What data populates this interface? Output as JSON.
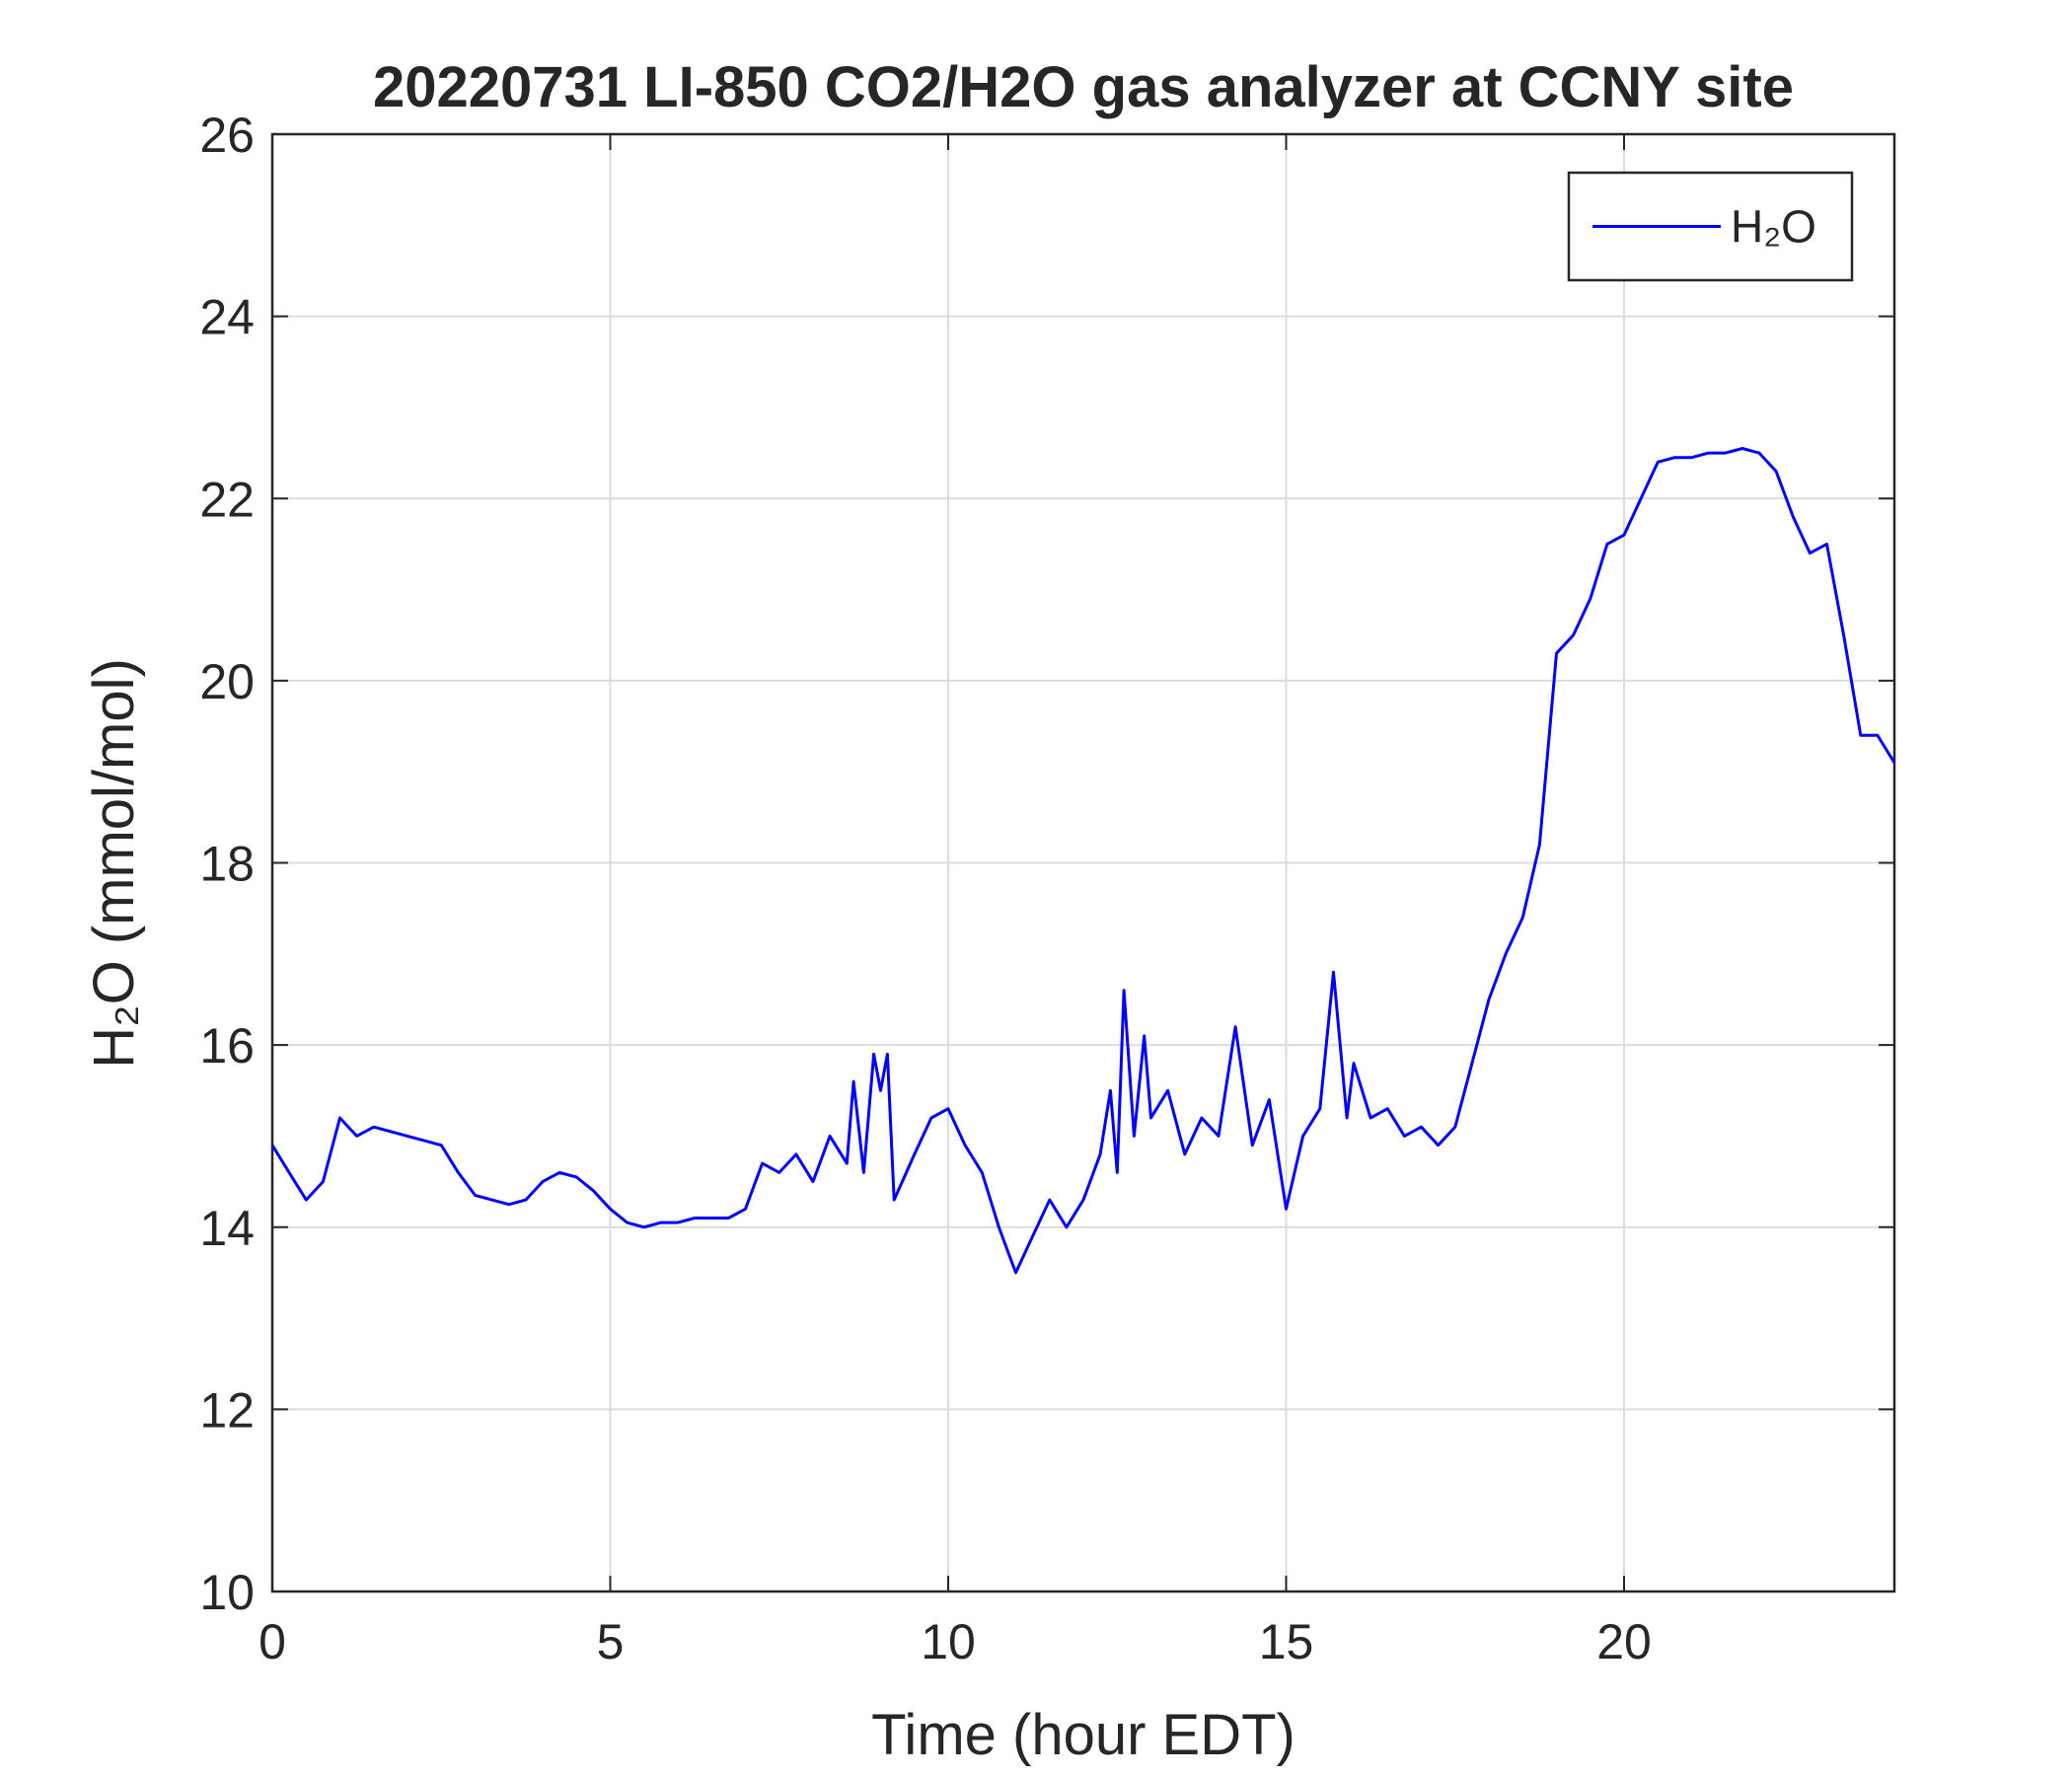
{
  "chart_data": {
    "type": "line",
    "title": "20220731 LI-850 CO2/H2O gas analyzer at CCNY site",
    "x_label": "Time (hour EDT)",
    "y_label": "H₂O (mmol/mol)",
    "x": [
      0,
      0.25,
      0.5,
      0.75,
      1.0,
      1.25,
      1.5,
      1.75,
      2.0,
      2.25,
      2.5,
      2.75,
      3.0,
      3.25,
      3.5,
      3.75,
      4.0,
      4.25,
      4.5,
      4.75,
      5.0,
      5.25,
      5.5,
      5.75,
      6.0,
      6.25,
      6.5,
      6.75,
      7.0,
      7.25,
      7.5,
      7.75,
      8.0,
      8.25,
      8.5,
      8.6,
      8.75,
      8.9,
      9.0,
      9.1,
      9.2,
      9.5,
      9.75,
      10.0,
      10.25,
      10.5,
      10.75,
      11.0,
      11.25,
      11.5,
      11.75,
      12.0,
      12.25,
      12.4,
      12.5,
      12.6,
      12.75,
      12.9,
      13.0,
      13.25,
      13.5,
      13.75,
      14.0,
      14.25,
      14.5,
      14.75,
      15.0,
      15.25,
      15.5,
      15.7,
      15.9,
      16.0,
      16.25,
      16.5,
      16.75,
      17.0,
      17.25,
      17.5,
      17.75,
      18.0,
      18.25,
      18.5,
      18.75,
      19.0,
      19.25,
      19.5,
      19.75,
      20.0,
      20.25,
      20.5,
      20.75,
      21.0,
      21.25,
      21.5,
      21.75,
      22.0,
      22.25,
      22.5,
      22.75,
      23.0,
      23.25,
      23.5,
      23.75,
      24.0
    ],
    "series": [
      {
        "name": "H₂O",
        "color": "#0000ff",
        "values": [
          14.9,
          14.6,
          14.3,
          14.5,
          15.2,
          15.0,
          15.1,
          15.05,
          15.0,
          14.95,
          14.9,
          14.6,
          14.35,
          14.3,
          14.25,
          14.3,
          14.5,
          14.6,
          14.55,
          14.4,
          14.2,
          14.05,
          14.0,
          14.05,
          14.05,
          14.1,
          14.1,
          14.1,
          14.2,
          14.7,
          14.6,
          14.8,
          14.5,
          15.0,
          14.7,
          15.6,
          14.6,
          15.9,
          15.5,
          15.9,
          14.3,
          14.8,
          15.2,
          15.3,
          14.9,
          14.6,
          14.0,
          13.5,
          13.9,
          14.3,
          14.0,
          14.3,
          14.8,
          15.5,
          14.6,
          16.6,
          15.0,
          16.1,
          15.2,
          15.5,
          14.8,
          15.2,
          15.0,
          16.2,
          14.9,
          15.4,
          14.2,
          15.0,
          15.3,
          16.8,
          15.2,
          15.8,
          15.2,
          15.3,
          15.0,
          15.1,
          14.9,
          15.1,
          15.8,
          16.5,
          17.0,
          17.4,
          18.2,
          20.3,
          20.5,
          20.9,
          21.5,
          21.6,
          22.0,
          22.4,
          22.45,
          22.45,
          22.5,
          22.5,
          22.55,
          22.5,
          22.3,
          21.8,
          21.4,
          21.5,
          20.5,
          19.4,
          19.4,
          19.1
        ]
      }
    ],
    "xlim": [
      0,
      24
    ],
    "xticks": [
      0,
      5,
      10,
      15,
      20
    ],
    "ylim": [
      10,
      26
    ],
    "yticks": [
      10,
      12,
      14,
      16,
      18,
      20,
      22,
      24,
      26
    ],
    "grid": true,
    "legend": "upper right"
  }
}
